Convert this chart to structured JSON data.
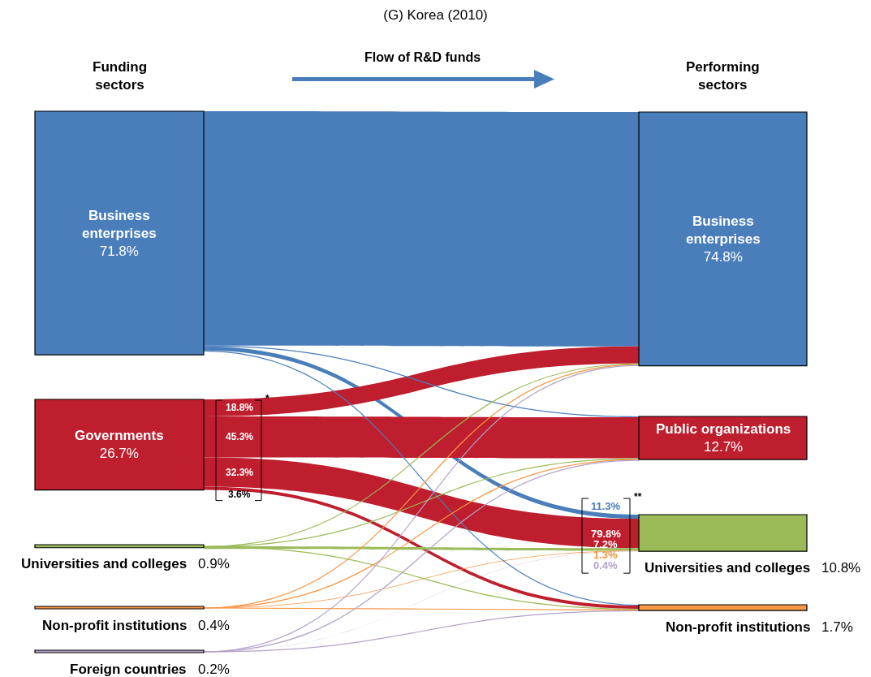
{
  "chart_data": {
    "type": "other",
    "title": "(G) Korea (2010)",
    "categories": [
      "Business enterprises",
      "Governments",
      "Universities and colleges",
      "Non-profit institutions",
      "Foreign countries",
      "Business enterprises",
      "Public organizations",
      "Universities and colleges",
      "Non-profit institutions"
    ],
    "values": [
      71.8,
      26.7,
      0.9,
      0.4,
      0.2,
      74.8,
      12.7,
      10.8,
      1.7
    ],
    "value_labels": [
      "71.8%",
      "26.7%",
      "0.9%",
      "0.4%",
      "0.2%",
      "74.8%",
      "12.7%",
      "10.8%",
      "1.7%"
    ],
    "colors": [
      "#4a7ebb",
      "#be1e2d",
      "#9bbb59",
      "#f79646",
      "#b3a2c7",
      "#4a7ebb",
      "#be1e2d",
      "#9bbb59",
      "#f79646"
    ],
    "annotations": [
      "Funding sectors",
      "Performing sectors",
      "Flow of R&D funds",
      "*",
      "**",
      "18.8%",
      "45.3%",
      "32.3%",
      "3.6%",
      "11.3%",
      "79.8%",
      "7.2%",
      "1.3%",
      "0.4%"
    ]
  }
}
